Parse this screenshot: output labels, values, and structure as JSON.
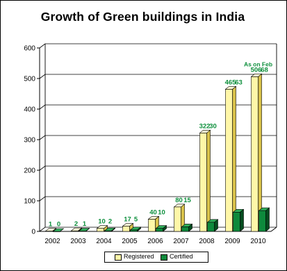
{
  "chart_data": {
    "type": "bar",
    "title": "Growth of Green buildings in India",
    "categories": [
      "2002",
      "2003",
      "2004",
      "2005",
      "2006",
      "2007",
      "2008",
      "2009",
      "2010"
    ],
    "series": [
      {
        "name": "Registered",
        "values": [
          1,
          2,
          10,
          17,
          40,
          80,
          322,
          465,
          506
        ],
        "color": "#fff7a8",
        "side_color": "#d9c24a",
        "top_color": "#fffbd6"
      },
      {
        "name": "Certified",
        "values": [
          0,
          1,
          2,
          5,
          10,
          15,
          30,
          63,
          68
        ],
        "color": "#0e8a3c",
        "side_color": "#064d20",
        "top_color": "#2fae5a"
      }
    ],
    "ylim": [
      0,
      600
    ],
    "yticks": [
      0,
      100,
      200,
      300,
      400,
      500,
      600
    ],
    "grid": true,
    "legend": "bottom",
    "annotation": "As on Feb",
    "label_color": "#0d8f3c"
  }
}
